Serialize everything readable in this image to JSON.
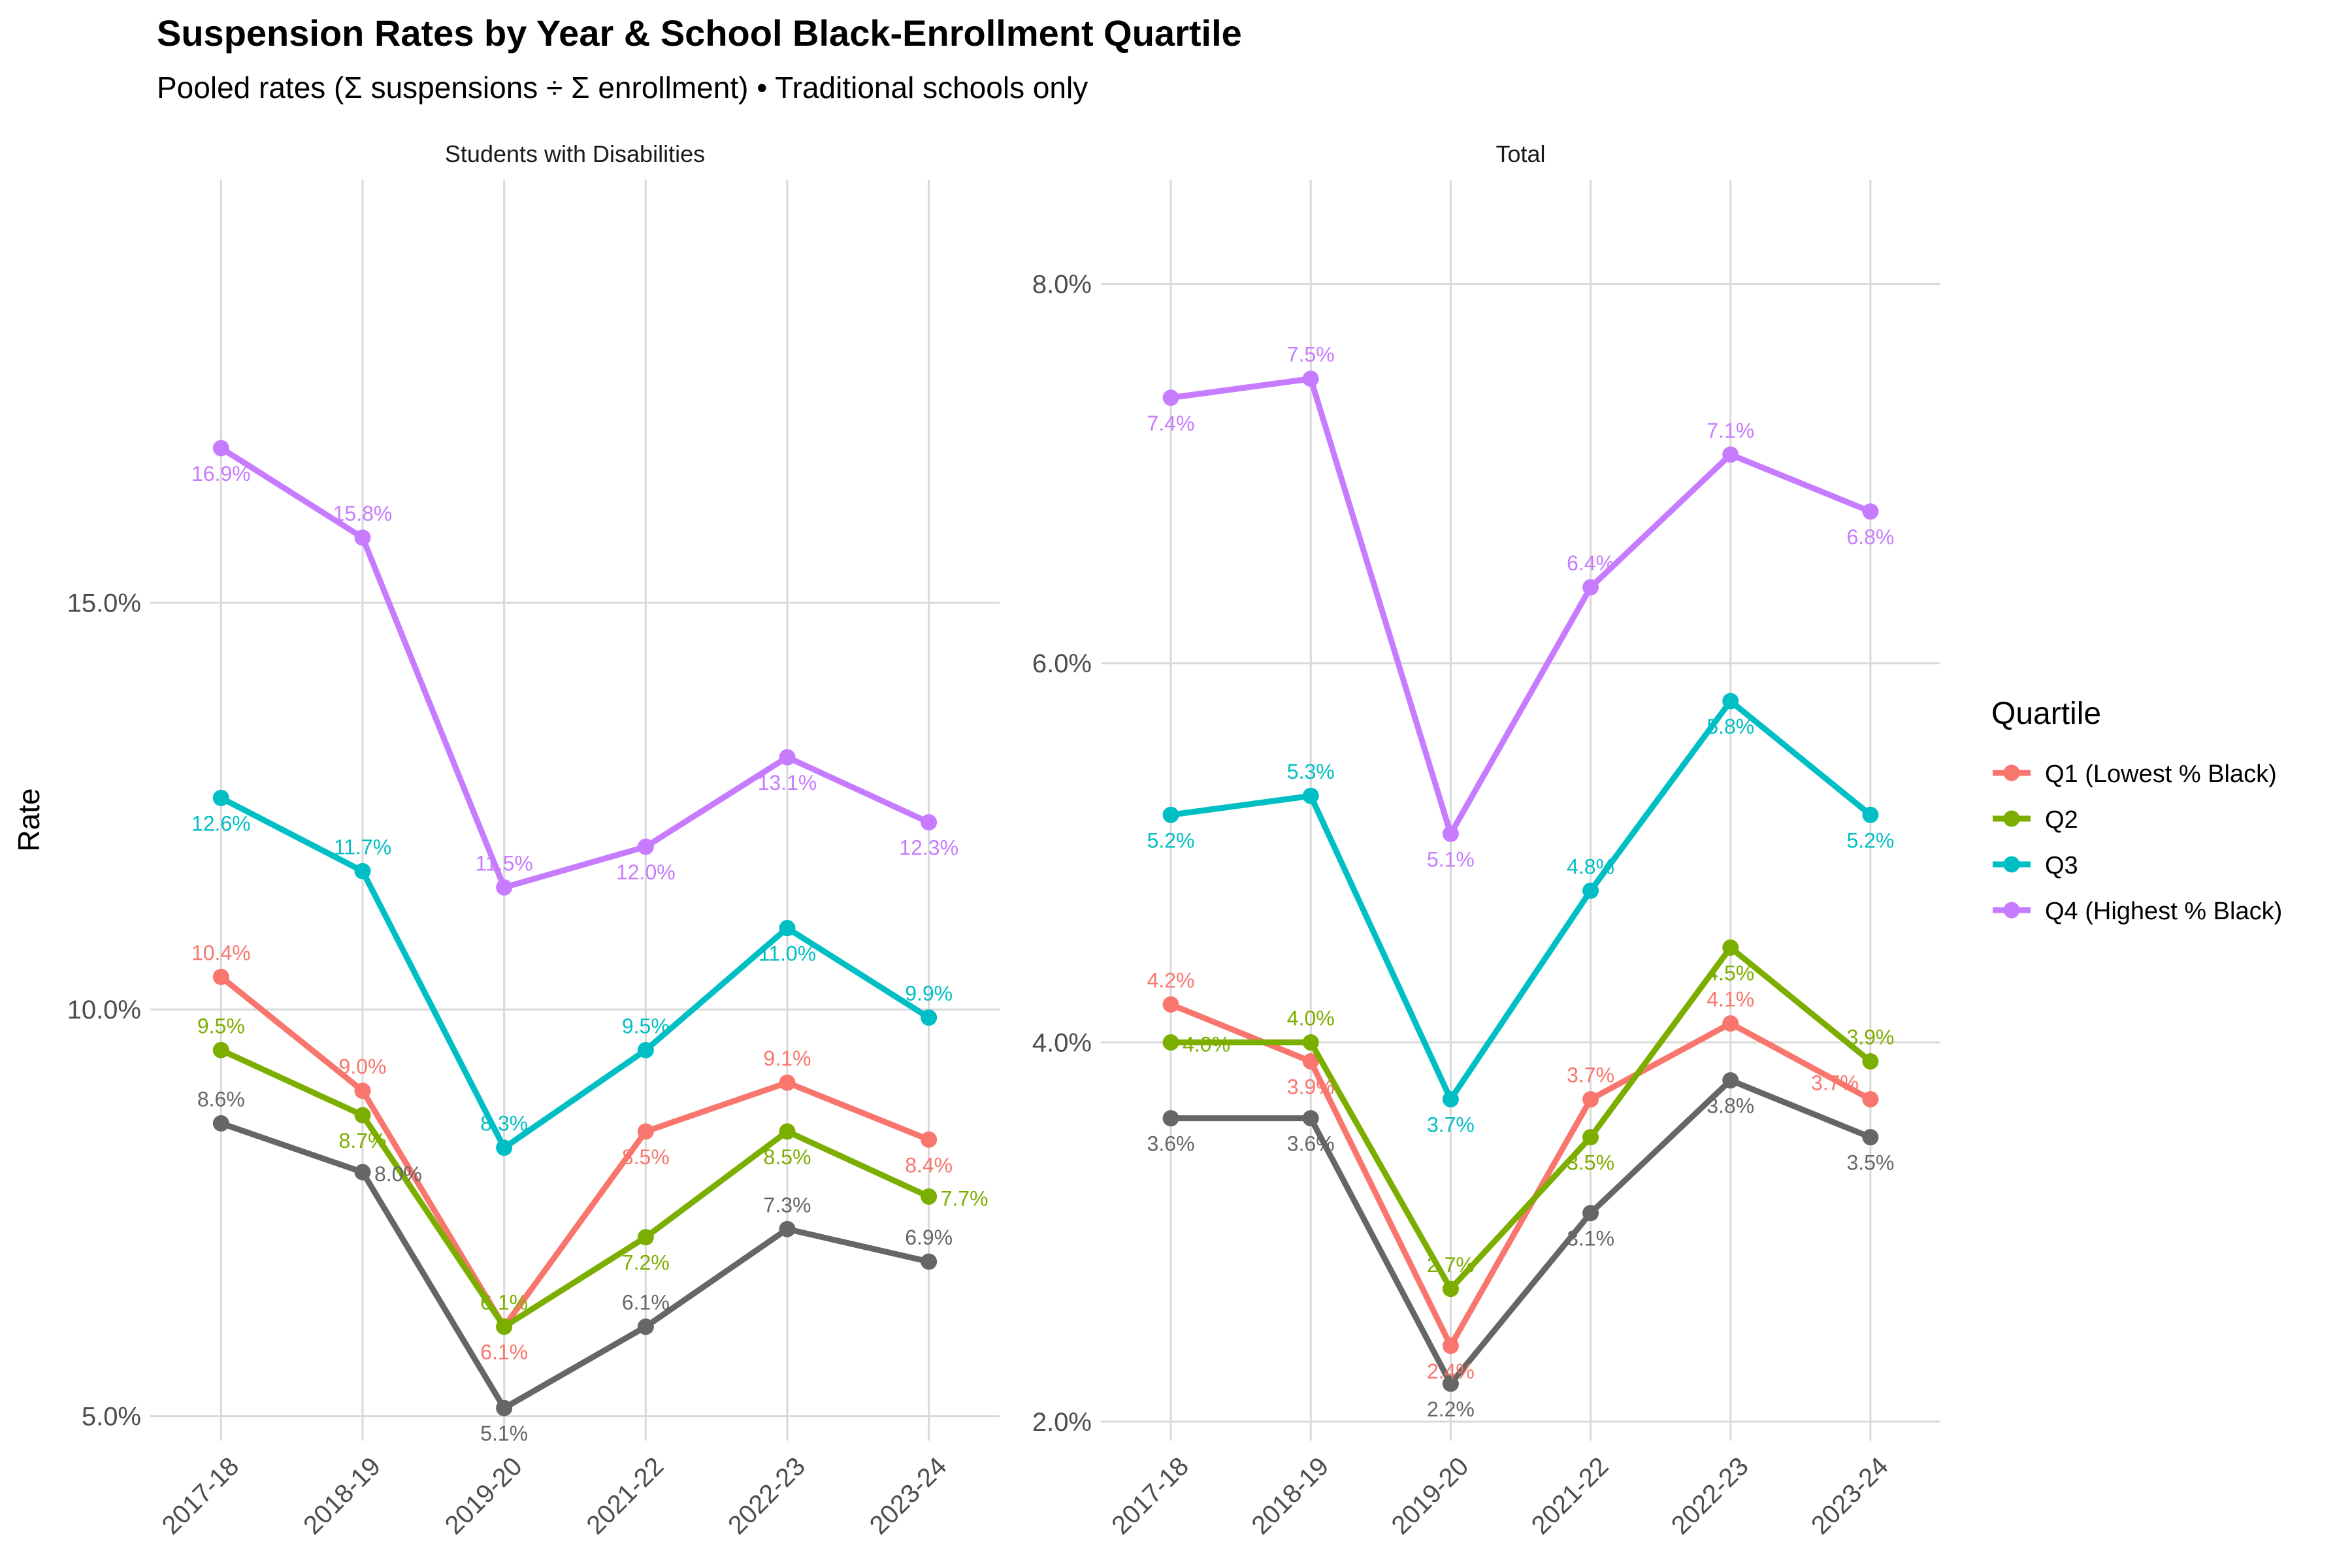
{
  "chart_data": {
    "type": "line",
    "title": "Suspension Rates by Year & School Black-Enrollment Quartile",
    "subtitle": "Pooled rates (Σ suspensions ÷ Σ enrollment) • Traditional schools only",
    "ylabel": "Rate",
    "xlabel": "",
    "grid": true,
    "categories": [
      "2017-18",
      "2018-19",
      "2019-20",
      "2021-22",
      "2022-23",
      "2023-24"
    ],
    "legend": {
      "title": "Quartile",
      "position": "right",
      "entries": [
        {
          "label": "Q1 (Lowest % Black)",
          "color": "#F8766D"
        },
        {
          "label": "Q2",
          "color": "#7CAE00"
        },
        {
          "label": "Q3",
          "color": "#00BFC4"
        },
        {
          "label": "Q4 (Highest % Black)",
          "color": "#C77CFF"
        }
      ]
    },
    "panels": [
      {
        "strip": "Students with Disabilities",
        "ylim": [
          4.7,
          20.2
        ],
        "yticks": [
          {
            "value": 5,
            "label": "5.0%"
          },
          {
            "value": 10,
            "label": "10.0%"
          },
          {
            "value": 15,
            "label": "15.0%"
          }
        ],
        "series": [
          {
            "key": "q1",
            "color": "#F8766D",
            "values": [
              10.4,
              9.0,
              6.1,
              8.5,
              9.1,
              8.4
            ],
            "labels": [
              "10.4%",
              "9.0%",
              "6.1%",
              "8.5%",
              "9.1%",
              "8.4%"
            ],
            "pos": [
              "above",
              "above",
              "below",
              "below",
              "above",
              "below"
            ]
          },
          {
            "key": "q2",
            "color": "#7CAE00",
            "values": [
              9.5,
              8.7,
              6.1,
              7.2,
              8.5,
              7.7
            ],
            "labels": [
              "9.5%",
              "8.7%",
              "6.1%",
              "7.2%",
              "8.5%",
              "7.7%"
            ],
            "pos": [
              "above",
              "below",
              "above",
              "below",
              "below",
              "right"
            ]
          },
          {
            "key": "q3",
            "color": "#00BFC4",
            "values": [
              12.6,
              11.7,
              8.3,
              9.5,
              11.0,
              9.9
            ],
            "labels": [
              "12.6%",
              "11.7%",
              "8.3%",
              "9.5%",
              "11.0%",
              "9.9%"
            ],
            "pos": [
              "below",
              "above",
              "above",
              "above",
              "below",
              "above"
            ]
          },
          {
            "key": "q4",
            "color": "#C77CFF",
            "values": [
              16.9,
              15.8,
              11.5,
              12.0,
              13.1,
              12.3
            ],
            "labels": [
              "16.9%",
              "15.8%",
              "11.5%",
              "12.0%",
              "13.1%",
              "12.3%"
            ],
            "pos": [
              "below",
              "above",
              "above",
              "below",
              "below",
              "below"
            ]
          },
          {
            "key": "other",
            "color": "#666666",
            "values": [
              8.6,
              8.0,
              5.1,
              6.1,
              7.3,
              6.9
            ],
            "labels": [
              "8.6%",
              "8.0%",
              "5.1%",
              "6.1%",
              "7.3%",
              "6.9%"
            ],
            "pos": [
              "above",
              "right",
              "below",
              "above",
              "above",
              "above"
            ]
          }
        ]
      },
      {
        "strip": "Total",
        "ylim": [
          1.9,
          8.55
        ],
        "yticks": [
          {
            "value": 2,
            "label": "2.0%"
          },
          {
            "value": 4,
            "label": "4.0%"
          },
          {
            "value": 6,
            "label": "6.0%"
          },
          {
            "value": 8,
            "label": "8.0%"
          }
        ],
        "series": [
          {
            "key": "q1",
            "color": "#F8766D",
            "values": [
              4.2,
              3.9,
              2.4,
              3.7,
              4.1,
              3.7
            ],
            "labels": [
              "4.2%",
              "3.9%",
              "2.4%",
              "3.7%",
              "4.1%",
              "3.7%"
            ],
            "pos": [
              "above",
              "below",
              "below",
              "above",
              "above",
              "left"
            ]
          },
          {
            "key": "q2",
            "color": "#7CAE00",
            "values": [
              4.0,
              4.0,
              2.7,
              3.5,
              4.5,
              3.9
            ],
            "labels": [
              "4.0%",
              "4.0%",
              "2.7%",
              "3.5%",
              "4.5%",
              "3.9%"
            ],
            "pos": [
              "right",
              "above",
              "above",
              "below",
              "below",
              "above"
            ]
          },
          {
            "key": "q3",
            "color": "#00BFC4",
            "values": [
              5.2,
              5.3,
              3.7,
              4.8,
              5.8,
              5.2
            ],
            "labels": [
              "5.2%",
              "5.3%",
              "3.7%",
              "4.8%",
              "5.8%",
              "5.2%"
            ],
            "pos": [
              "below",
              "above",
              "below",
              "above",
              "below",
              "below"
            ]
          },
          {
            "key": "q4",
            "color": "#C77CFF",
            "values": [
              7.4,
              7.5,
              5.1,
              6.4,
              7.1,
              6.8
            ],
            "labels": [
              "7.4%",
              "7.5%",
              "5.1%",
              "6.4%",
              "7.1%",
              "6.8%"
            ],
            "pos": [
              "below",
              "above",
              "below",
              "above",
              "above",
              "below"
            ]
          },
          {
            "key": "other",
            "color": "#666666",
            "values": [
              3.6,
              3.6,
              2.2,
              3.1,
              3.8,
              3.5
            ],
            "labels": [
              "3.6%",
              "3.6%",
              "2.2%",
              "3.1%",
              "3.8%",
              "3.5%"
            ],
            "pos": [
              "below",
              "below",
              "below",
              "below",
              "below",
              "below"
            ]
          }
        ]
      }
    ]
  }
}
